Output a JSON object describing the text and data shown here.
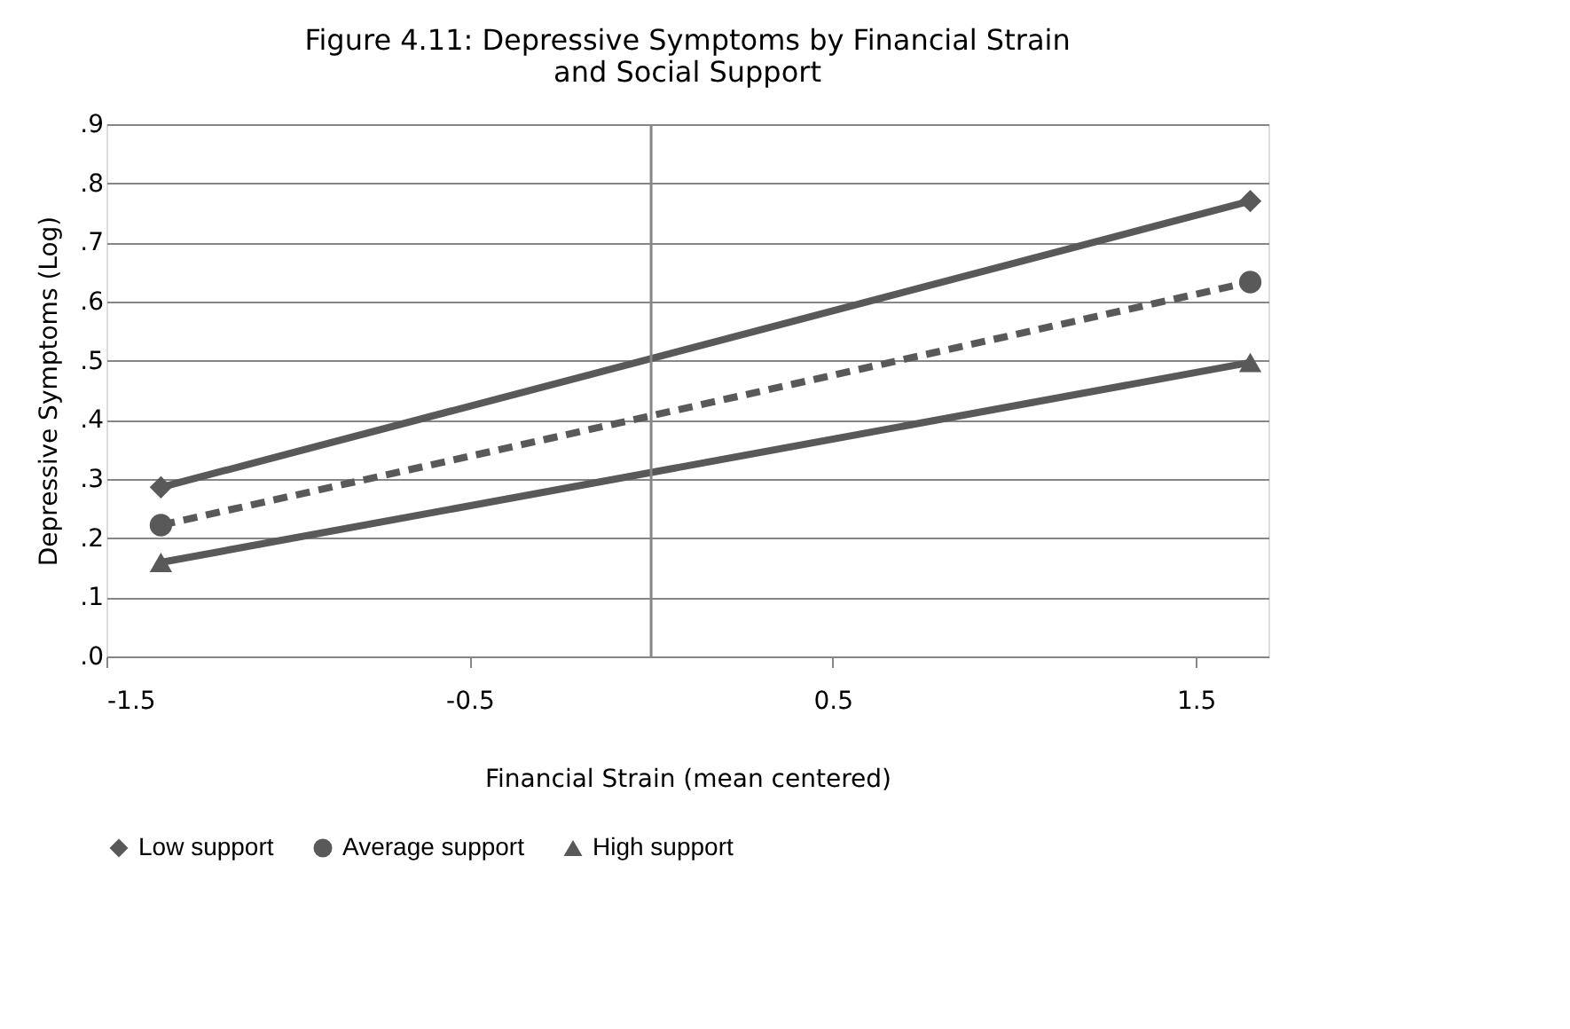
{
  "chart_data": {
    "type": "line",
    "title": "Figure 4.11:   Depressive Symptoms by Financial Strain and Social Support",
    "xlabel": "Financial Strain (mean centered)",
    "ylabel": "Depressive Symptoms (Log)",
    "x": [
      -1.35,
      1.65
    ],
    "series": [
      {
        "name": "Low support",
        "color": "#595959",
        "values": [
          0.286,
          0.77
        ],
        "marker": "diamond",
        "line_style": "solid"
      },
      {
        "name": "Average support",
        "color": "#595959",
        "values": [
          0.222,
          0.633
        ],
        "marker": "circle",
        "line_style": "dashed"
      },
      {
        "name": "High support",
        "color": "#595959",
        "values": [
          0.159,
          0.497
        ],
        "marker": "triangle",
        "line_style": "solid"
      }
    ],
    "xlim": [
      -1.5,
      1.7
    ],
    "xticks": [
      -1.5,
      -0.5,
      0.5,
      1.5
    ],
    "ylim": [
      0,
      0.9
    ],
    "yticks": [
      {
        "value": 0,
        "label": ".0"
      },
      {
        "value": 0.1,
        "label": ".1"
      },
      {
        "value": 0.2,
        "label": ".2"
      },
      {
        "value": 0.3,
        "label": ".3"
      },
      {
        "value": 0.4,
        "label": ".4"
      },
      {
        "value": 0.5,
        "label": ".5"
      },
      {
        "value": 0.6,
        "label": ".6"
      },
      {
        "value": 0.7,
        "label": ".7"
      },
      {
        "value": 0.8,
        "label": ".8"
      },
      {
        "value": 0.9,
        "label": ".9"
      }
    ],
    "ref_lines": [
      {
        "axis": "x",
        "value": 0,
        "label": null,
        "color": "#868686"
      }
    ],
    "grid": "y",
    "legend": "bottom"
  }
}
